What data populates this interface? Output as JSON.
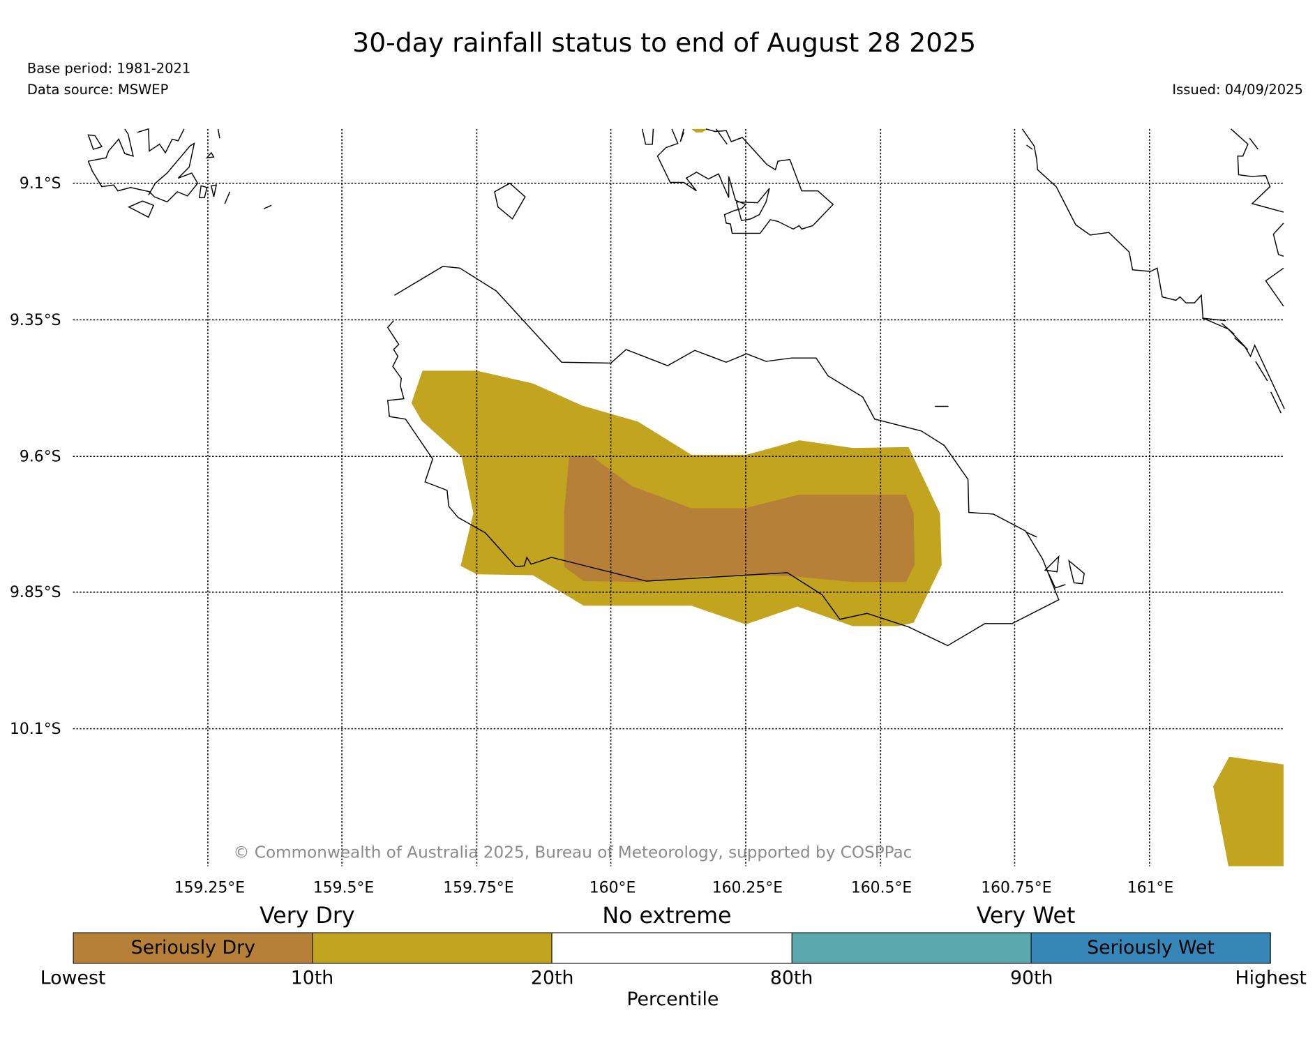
{
  "header": {
    "title": "30-day rainfall status to end of August 28 2025",
    "base_period": "Base period: 1981-2021",
    "data_source": "Data source: MSWEP",
    "issued": "Issued: 04/09/2025"
  },
  "map": {
    "lat_labels": [
      "9.1°S",
      "9.35°S",
      "9.6°S",
      "9.85°S",
      "10.1°S"
    ],
    "lon_labels": [
      "159.25°E",
      "159.5°E",
      "159.75°E",
      "160°E",
      "160.25°E",
      "160.5°E",
      "160.75°E",
      "161°E"
    ],
    "copyright": "© Commonwealth of Australia 2025, Bureau of Meteorology, supported by COSPPac",
    "colors": {
      "seriously_dry": "#b68039",
      "very_dry": "#c3a41f",
      "no_extreme": "#ffffff",
      "very_wet": "#5ba9ae",
      "seriously_wet": "#3686b8"
    }
  },
  "legend": {
    "groups": [
      "Very Dry",
      "No extreme",
      "Very Wet"
    ],
    "segments": [
      "Seriously Dry",
      "",
      "",
      "",
      "Seriously Wet"
    ],
    "ticks": [
      "Lowest",
      "10th",
      "20th",
      "80th",
      "90th",
      "Highest"
    ],
    "axis_label": "Percentile"
  }
}
